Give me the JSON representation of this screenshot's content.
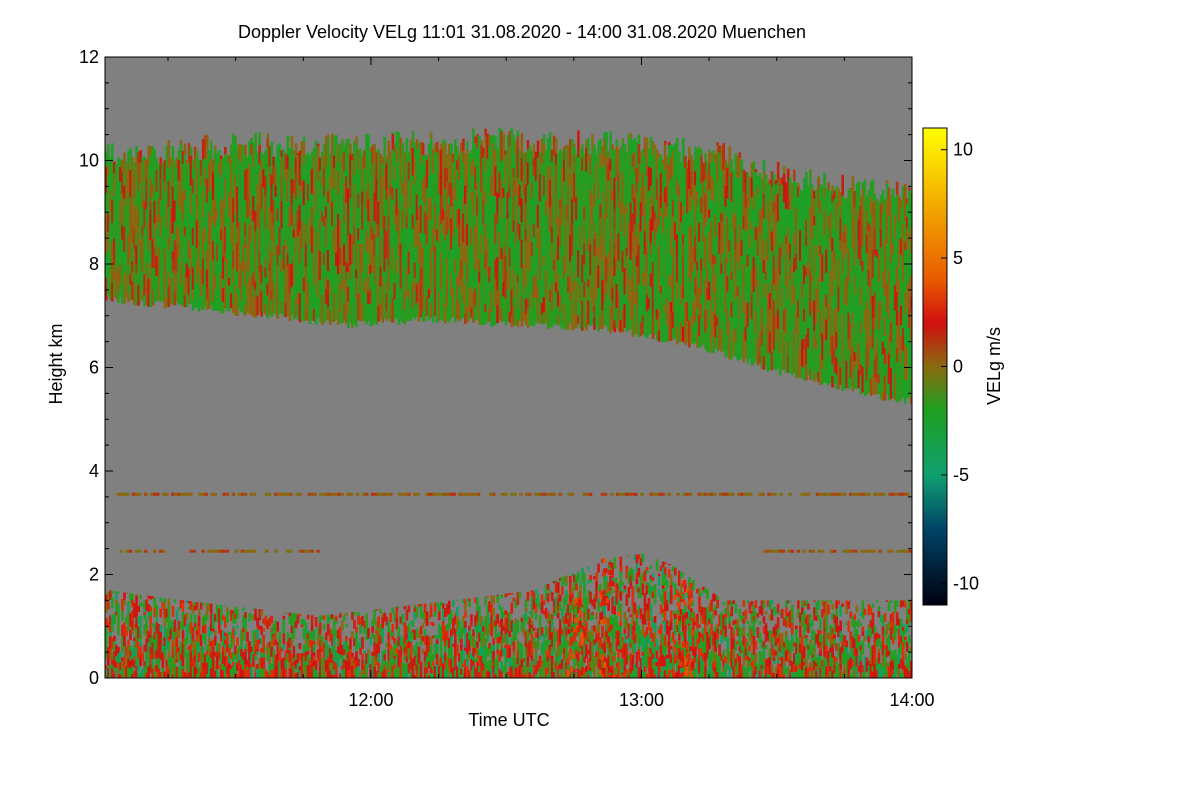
{
  "chart_data": {
    "type": "heatmap",
    "title": "Doppler Velocity VELg   11:01 31.08.2020 - 14:00 31.08.2020 Muenchen",
    "xlabel": "Time UTC",
    "ylabel": "Height km",
    "xlim_hours": [
      11.017,
      14.0
    ],
    "ylim_km": [
      0,
      12
    ],
    "x_ticks": [
      {
        "value": 12.0,
        "label": "12:00"
      },
      {
        "value": 13.0,
        "label": "13:00"
      },
      {
        "value": 14.0,
        "label": "14:00"
      }
    ],
    "y_ticks": [
      {
        "value": 0,
        "label": "0"
      },
      {
        "value": 2,
        "label": "2"
      },
      {
        "value": 4,
        "label": "4"
      },
      {
        "value": 6,
        "label": "6"
      },
      {
        "value": 8,
        "label": "8"
      },
      {
        "value": 10,
        "label": "10"
      },
      {
        "value": 12,
        "label": "12"
      }
    ],
    "colorbar": {
      "label": "VELg m/s",
      "range": [
        -11,
        11
      ],
      "ticks": [
        {
          "value": 10,
          "label": "10"
        },
        {
          "value": 5,
          "label": "5"
        },
        {
          "value": 0,
          "label": "0"
        },
        {
          "value": -5,
          "label": "-5"
        },
        {
          "value": -10,
          "label": "-10"
        }
      ],
      "stops": [
        {
          "value": 11,
          "color": "#ffff00"
        },
        {
          "value": 7,
          "color": "#f0a000"
        },
        {
          "value": 4,
          "color": "#e85a00"
        },
        {
          "value": 2,
          "color": "#d01010"
        },
        {
          "value": 0,
          "color": "#8a6a10"
        },
        {
          "value": -2,
          "color": "#20a020"
        },
        {
          "value": -5,
          "color": "#10a070"
        },
        {
          "value": -7.5,
          "color": "#004466"
        },
        {
          "value": -11,
          "color": "#000010"
        }
      ]
    },
    "no_signal_color": "#808080",
    "upper_cloud": {
      "description_velocity_mean": -1,
      "top_km": [
        [
          11.017,
          10.1
        ],
        [
          11.5,
          10.3
        ],
        [
          12.0,
          10.3
        ],
        [
          12.5,
          10.4
        ],
        [
          13.0,
          10.3
        ],
        [
          13.3,
          10.1
        ],
        [
          13.6,
          9.6
        ],
        [
          14.0,
          9.3
        ]
      ],
      "base_km": [
        [
          11.017,
          7.3
        ],
        [
          11.2,
          7.2
        ],
        [
          11.4,
          7.1
        ],
        [
          11.9,
          6.8
        ],
        [
          12.2,
          6.9
        ],
        [
          12.6,
          6.8
        ],
        [
          12.9,
          6.7
        ],
        [
          13.2,
          6.4
        ],
        [
          13.5,
          5.9
        ],
        [
          13.8,
          5.5
        ],
        [
          14.0,
          5.3
        ]
      ]
    },
    "boundary_layer": {
      "top_km": [
        [
          11.017,
          1.7
        ],
        [
          11.3,
          1.5
        ],
        [
          11.8,
          1.2
        ],
        [
          12.3,
          1.5
        ],
        [
          12.6,
          1.7
        ],
        [
          12.85,
          2.3
        ],
        [
          13.0,
          2.4
        ],
        [
          13.1,
          2.2
        ],
        [
          13.3,
          1.5
        ],
        [
          13.7,
          1.5
        ],
        [
          14.0,
          1.5
        ]
      ]
    },
    "thin_layers": [
      {
        "height_km": 3.55,
        "from": 11.06,
        "to": 14.0
      },
      {
        "height_km": 2.45,
        "from": 11.06,
        "to": 11.8
      },
      {
        "height_km": 2.45,
        "from": 13.45,
        "to": 14.0
      }
    ],
    "convective_plumes": [
      {
        "center": 12.88,
        "top_km": 2.4,
        "width_h": 0.08
      },
      {
        "center": 13.15,
        "top_km": 1.9,
        "width_h": 0.07
      },
      {
        "center": 12.75,
        "top_km": 1.6,
        "width_h": 0.06
      }
    ]
  }
}
